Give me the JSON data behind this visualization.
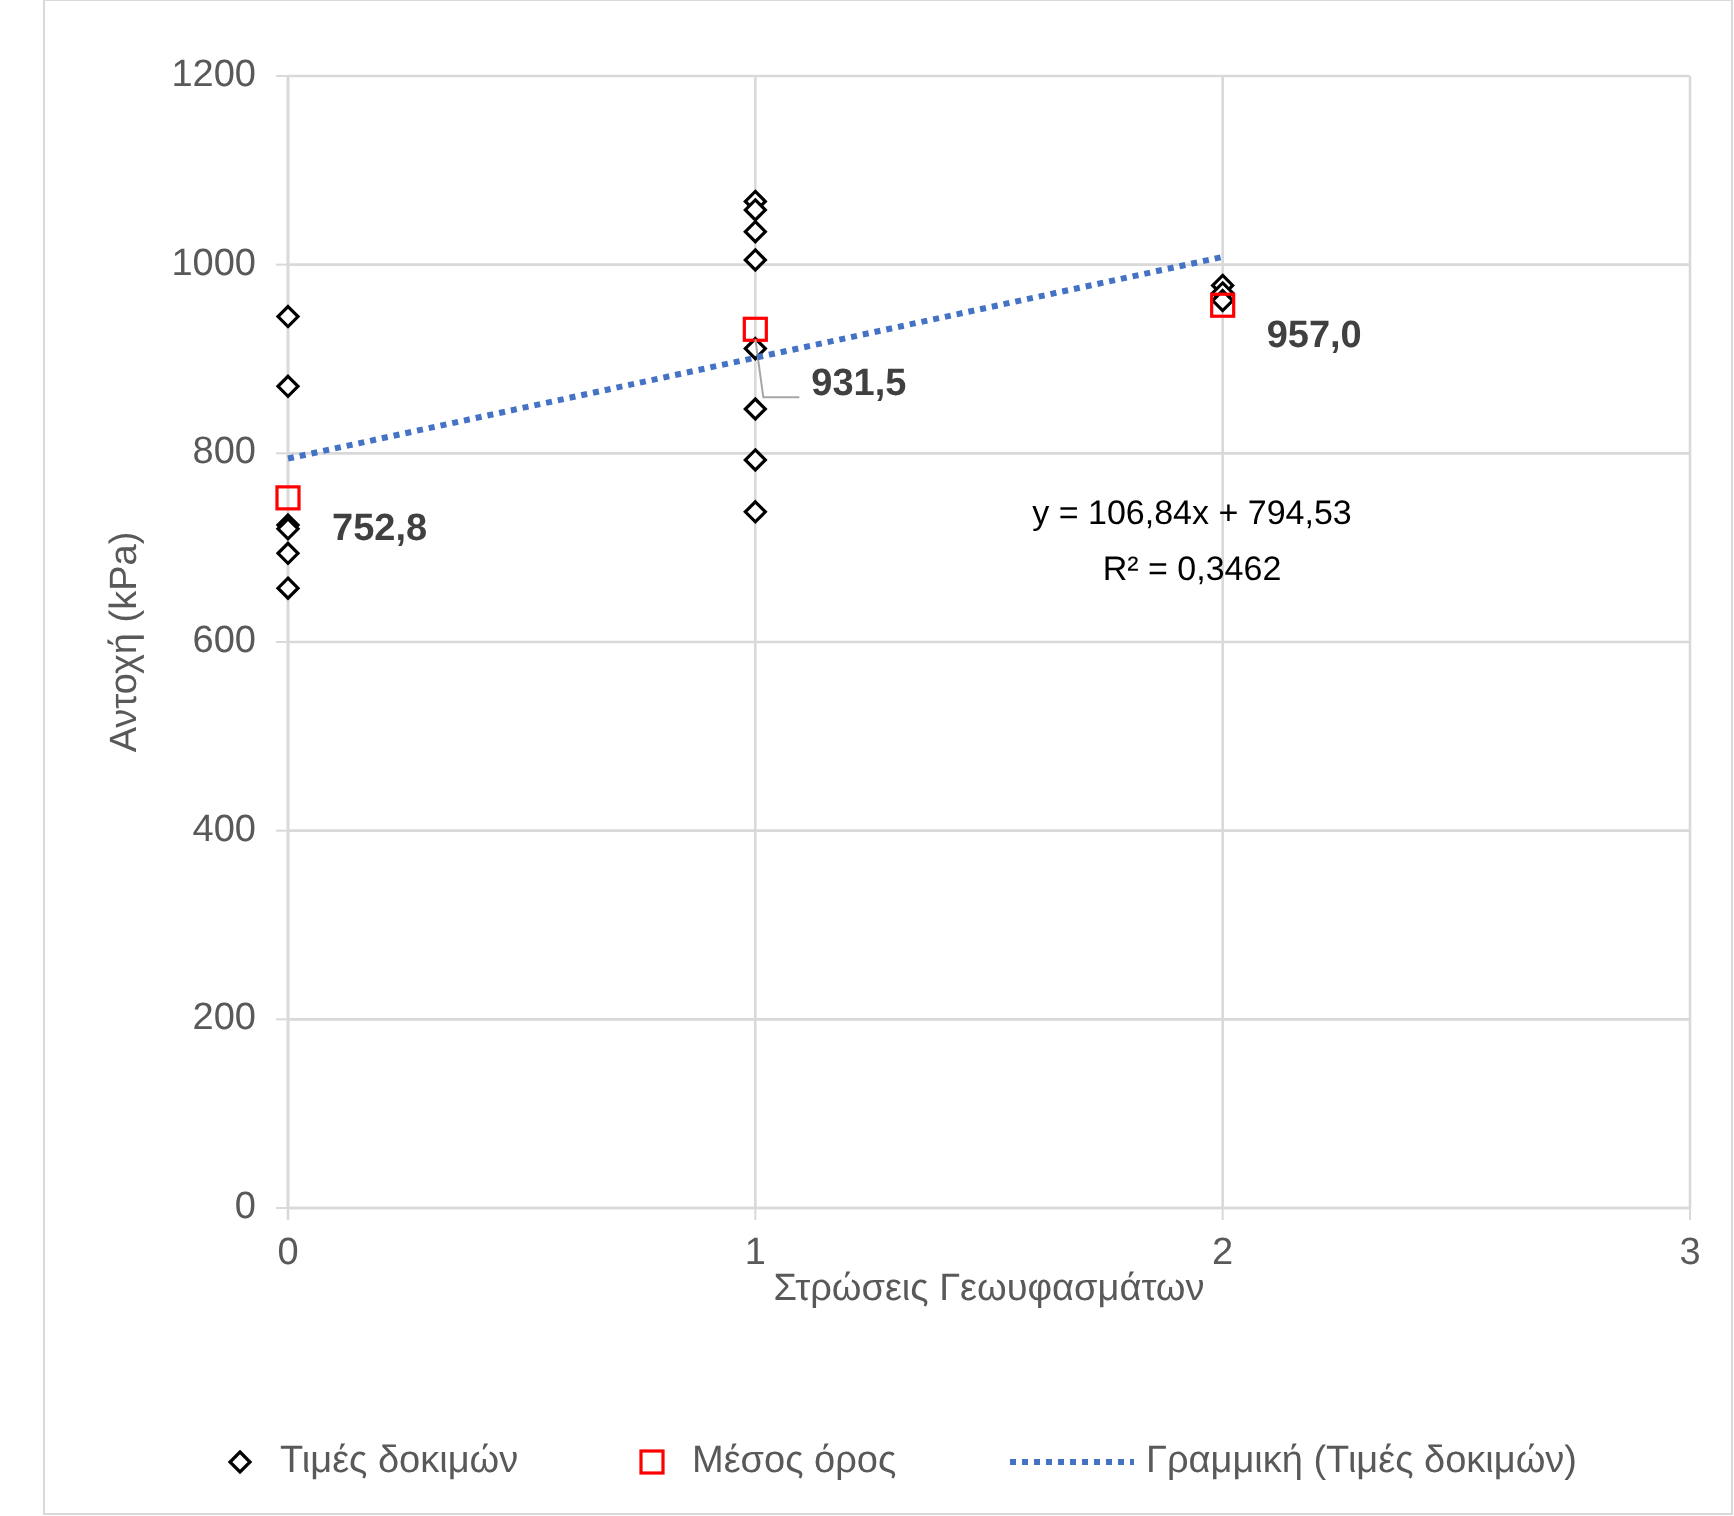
{
  "chart_data": {
    "type": "scatter",
    "xlabel": "Στρώσεις Γεωυφασμάτων",
    "ylabel": "Αντοχή (kPa)",
    "xlim": [
      0,
      3
    ],
    "xticks": [
      0,
      1,
      2,
      3
    ],
    "ylim": [
      0,
      1200
    ],
    "yticks": [
      0,
      200,
      400,
      600,
      800,
      1000,
      1200
    ],
    "grid": true,
    "legend": "bottom",
    "series": [
      {
        "name": "Τιμές δοκιμών",
        "marker": "diamond",
        "color": "#000000",
        "x": [
          0,
          0,
          0,
          0,
          0,
          0,
          1,
          1,
          1,
          1,
          1,
          1,
          1,
          1,
          2,
          2,
          2
        ],
        "values": [
          945,
          871,
          724,
          720,
          694,
          657,
          1067,
          1058,
          1035,
          1005,
          911,
          847,
          793,
          738,
          978,
          970,
          962
        ]
      },
      {
        "name": "Μέσος όρος",
        "marker": "square",
        "color": "#ff0000",
        "x": [
          0,
          1,
          2
        ],
        "values": [
          752.8,
          931.5,
          957.0
        ],
        "value_labels": [
          "752,8",
          "931,5",
          "957,0"
        ]
      },
      {
        "name": "Γραμμική (Τιμές δοκιμών)",
        "type": "line",
        "line_style": "dotted",
        "color": "#4472c4",
        "x": [
          0,
          2
        ],
        "values": [
          794.5,
          1008.2
        ]
      }
    ],
    "annotations": [
      "y = 106,84x + 794,53",
      "R² = 0,3462"
    ]
  }
}
